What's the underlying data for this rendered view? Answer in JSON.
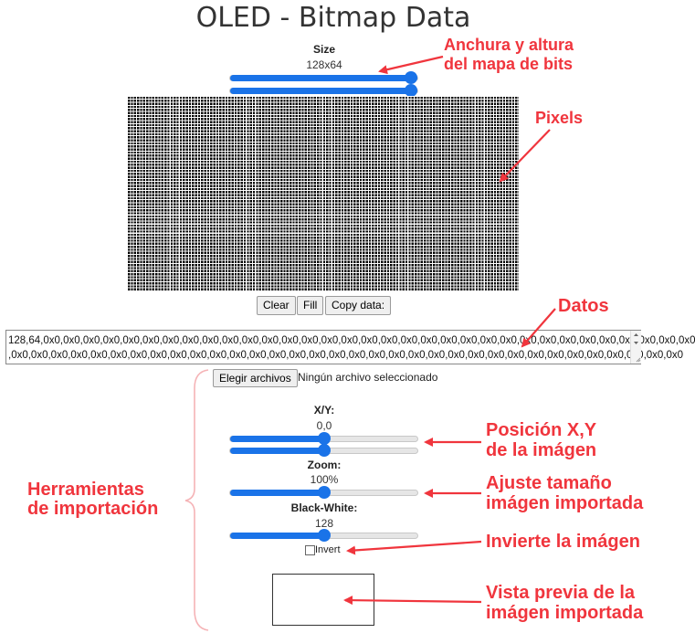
{
  "header": {
    "title": "OLED - Bitmap Data"
  },
  "size": {
    "label": "Size",
    "value": "128x64"
  },
  "actions": {
    "clear": "Clear",
    "fill": "Fill",
    "copy": "Copy data:"
  },
  "data_field": {
    "line1": "128,64,0x0,0x0,0x0,0x0,0x0,0x0,0x0,0x0,0x0,0x0,0x0,0x0,0x0,0x0,0x0,0x0,0x0,0x0,0x0,0x0,0x0,0x0,0x0,0x0,0x0,0x0,0x0,0x0,0x0,0x0,0x0,0x0,0x0",
    "line2": ",0x0,0x0,0x0,0x0,0x0,0x0,0x0,0x0,0x0,0x0,0x0,0x0,0x0,0x0,0x0,0x0,0x0,0x0,0x0,0x0,0x0,0x0,0x0,0x0,0x0,0x0,0x0,0x0,0x0,0x0,0x0,0x0,0x0,0x0"
  },
  "file": {
    "button": "Elegir archivos",
    "status": "Ningún archivo seleccionado"
  },
  "xy": {
    "label": "X/Y:",
    "value": "0,0",
    "x_level": 0.5,
    "y_level": 0.5
  },
  "zoom": {
    "label": "Zoom:",
    "value": "100%",
    "level": 0.5
  },
  "bw": {
    "label": "Black-White:",
    "value": "128",
    "level": 0.5
  },
  "size_sliders": {
    "width_level": 1.0,
    "height_level": 1.0
  },
  "invert": {
    "label": "Invert",
    "checked": false
  },
  "annotations": {
    "size_line1": "Anchura y altura",
    "size_line2": "del mapa de bits",
    "pixels": "Pixels",
    "datos": "Datos",
    "herr_line1": "Herramientas",
    "herr_line2": "de importación",
    "pos_line1": "Posición X,Y",
    "pos_line2": "de la imágen",
    "ajuste_line1": "Ajuste tamaño",
    "ajuste_line2": "imágen importada",
    "invierte": "Invierte la imágen",
    "vista_line1": "Vista previa de la",
    "vista_line2": "imágen importada"
  },
  "colors": {
    "accent": "#1a73e8",
    "annotation": "#f0353d"
  }
}
